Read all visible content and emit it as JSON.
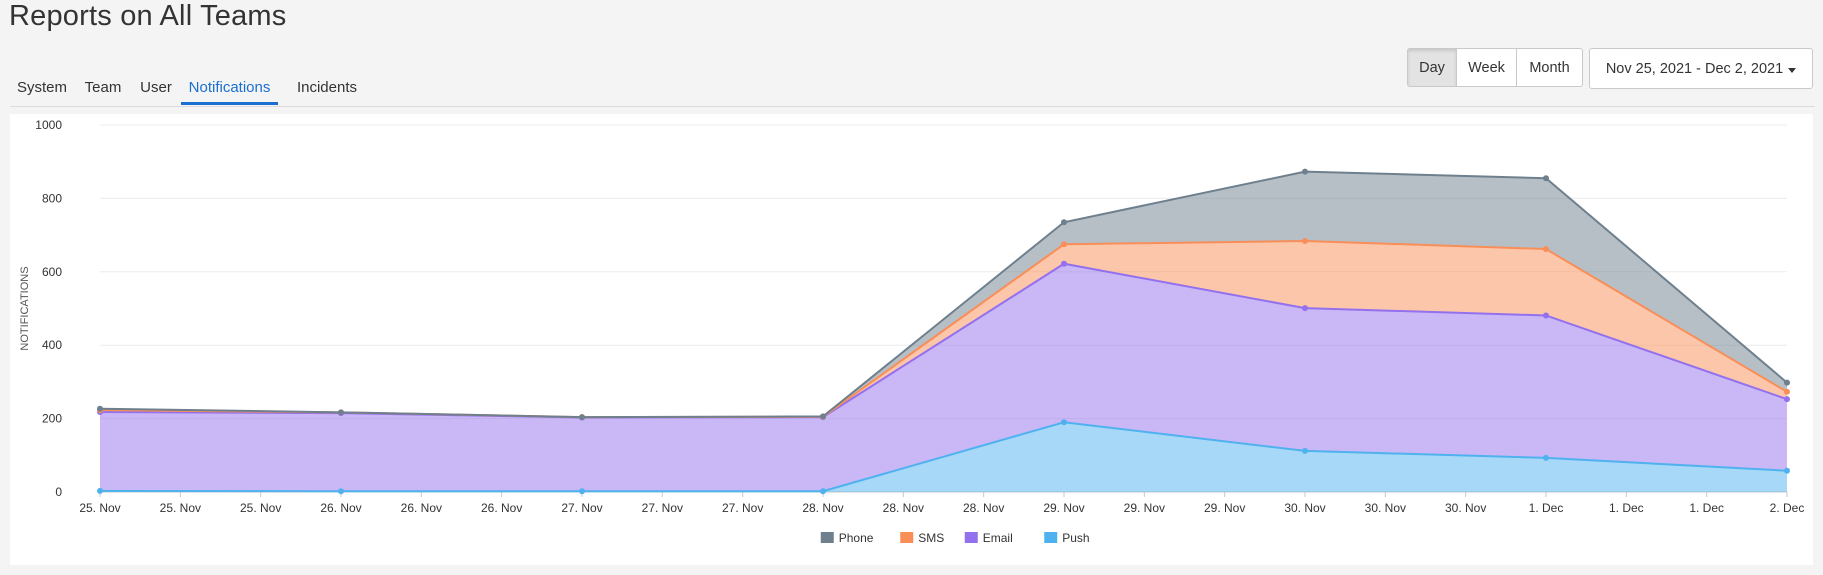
{
  "page": {
    "title": "Reports on All Teams"
  },
  "tabs": [
    {
      "label": "System"
    },
    {
      "label": "Team"
    },
    {
      "label": "User"
    },
    {
      "label": "Notifications",
      "active": true
    },
    {
      "label": "Incidents"
    }
  ],
  "range_buttons": {
    "day": "Day",
    "week": "Week",
    "month": "Month",
    "selected": "Day"
  },
  "date_range": {
    "label": "Nov 25, 2021 - Dec 2, 2021"
  },
  "colors": {
    "phone": "#6e7f8d",
    "sms": "#f98e58",
    "email": "#9370ee",
    "push": "#4fb2ef",
    "active_tab": "#1a6fd1"
  },
  "chart_data": {
    "type": "area",
    "stacked": true,
    "ylabel": "NOTIFICATIONS",
    "ylim": [
      0,
      1000
    ],
    "yticks": [
      0,
      200,
      400,
      600,
      800,
      1000
    ],
    "x_tick_labels": [
      "25. Nov",
      "25. Nov",
      "25. Nov",
      "26. Nov",
      "26. Nov",
      "26. Nov",
      "27. Nov",
      "27. Nov",
      "27. Nov",
      "28. Nov",
      "28. Nov",
      "28. Nov",
      "29. Nov",
      "29. Nov",
      "29. Nov",
      "30. Nov",
      "30. Nov",
      "30. Nov",
      "1. Dec",
      "1. Dec",
      "1. Dec",
      "2. Dec"
    ],
    "x": [
      "2021-11-25",
      "2021-11-26",
      "2021-11-27",
      "2021-11-28",
      "2021-11-29",
      "2021-11-30",
      "2021-12-01",
      "2021-12-02"
    ],
    "series": [
      {
        "name": "Push",
        "key": "push",
        "values": [
          3,
          2,
          2,
          2,
          190,
          112,
          93,
          58
        ]
      },
      {
        "name": "Email",
        "key": "email",
        "values": [
          215,
          213,
          201,
          202,
          432,
          389,
          388,
          195
        ]
      },
      {
        "name": "SMS",
        "key": "sms",
        "values": [
          5,
          2,
          1,
          1,
          53,
          183,
          181,
          20
        ]
      },
      {
        "name": "Phone",
        "key": "phone",
        "values": [
          4,
          0,
          0,
          1,
          60,
          189,
          193,
          25
        ]
      }
    ],
    "legend": {
      "position": "bottom-center",
      "order": [
        "Phone",
        "SMS",
        "Email",
        "Push"
      ]
    },
    "grid": true
  }
}
